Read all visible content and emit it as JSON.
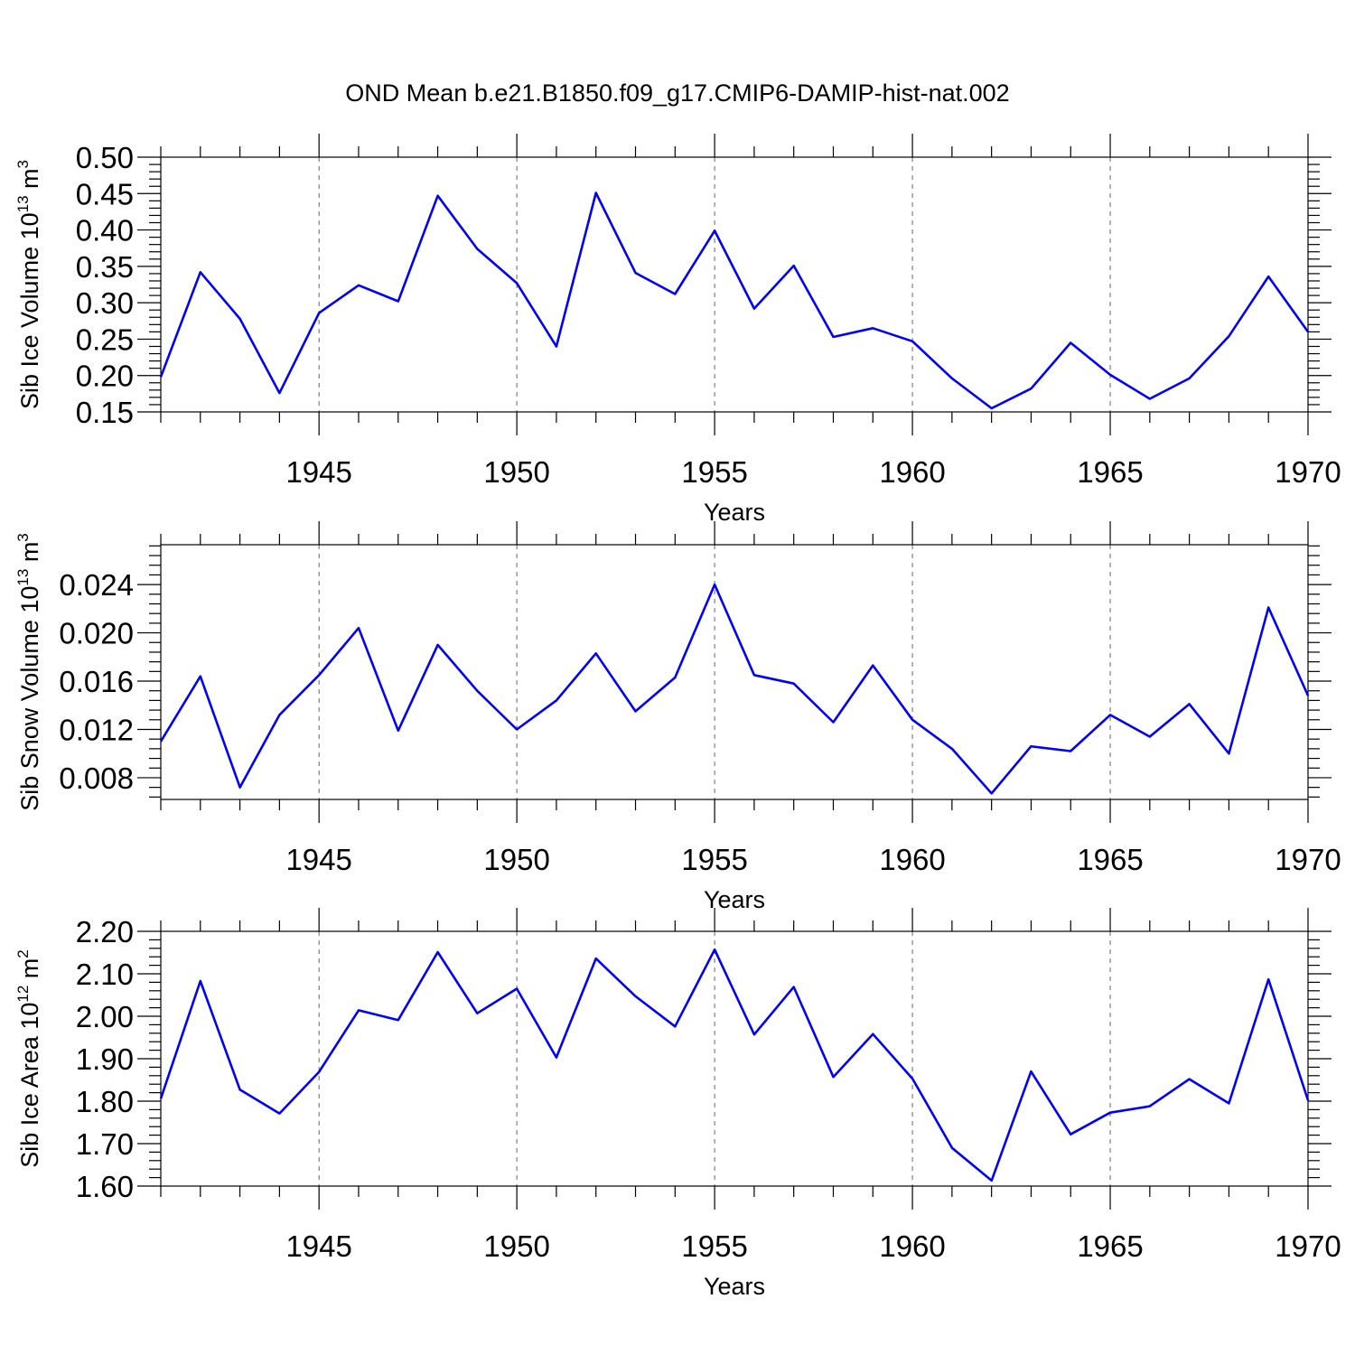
{
  "title": "OND Mean b.e21.B1850.f09_g17.CMIP6-DAMIP-hist-nat.002",
  "chart_data": [
    {
      "type": "line",
      "ylabel_main": "Sib Ice Volume 10",
      "ylabel_sup": "13",
      "ylabel_tail": " m",
      "ylabel_sup2": "3",
      "xlabel": "Years",
      "xlim": [
        1941,
        1970
      ],
      "ylim": [
        0.15,
        0.5
      ],
      "yticks": [
        "0.15",
        "0.20",
        "0.25",
        "0.30",
        "0.35",
        "0.40",
        "0.45",
        "0.50"
      ],
      "ytick_values": [
        0.15,
        0.2,
        0.25,
        0.3,
        0.35,
        0.4,
        0.45,
        0.5
      ],
      "xticks": [
        "1945",
        "1950",
        "1955",
        "1960",
        "1965",
        "1970"
      ],
      "xtick_values": [
        1945,
        1950,
        1955,
        1960,
        1965,
        1970
      ],
      "grid": "vertical dashed at major x ticks",
      "color": "#0000ff",
      "x": [
        1941,
        1942,
        1943,
        1944,
        1945,
        1946,
        1947,
        1948,
        1949,
        1950,
        1951,
        1952,
        1953,
        1954,
        1955,
        1956,
        1957,
        1958,
        1959,
        1960,
        1961,
        1962,
        1963,
        1964,
        1965,
        1966,
        1967,
        1968,
        1969,
        1970
      ],
      "values": [
        0.198,
        0.342,
        0.278,
        0.176,
        0.286,
        0.324,
        0.302,
        0.447,
        0.374,
        0.327,
        0.24,
        0.451,
        0.341,
        0.312,
        0.399,
        0.292,
        0.351,
        0.253,
        0.265,
        0.247,
        0.196,
        0.155,
        0.182,
        0.245,
        0.201,
        0.168,
        0.196,
        0.254,
        0.336,
        0.26
      ]
    },
    {
      "type": "line",
      "ylabel_main": "Sib Snow Volume 10",
      "ylabel_sup": "13",
      "ylabel_tail": " m",
      "ylabel_sup2": "3",
      "xlabel": "Years",
      "xlim": [
        1941,
        1970
      ],
      "ylim": [
        0.0062,
        0.0273
      ],
      "yticks": [
        "0.008",
        "0.012",
        "0.016",
        "0.020",
        "0.024"
      ],
      "ytick_values": [
        0.008,
        0.012,
        0.016,
        0.02,
        0.024
      ],
      "xticks": [
        "1945",
        "1950",
        "1955",
        "1960",
        "1965",
        "1970"
      ],
      "xtick_values": [
        1945,
        1950,
        1955,
        1960,
        1965,
        1970
      ],
      "grid": "vertical dashed at major x ticks",
      "color": "#0000ff",
      "x": [
        1941,
        1942,
        1943,
        1944,
        1945,
        1946,
        1947,
        1948,
        1949,
        1950,
        1951,
        1952,
        1953,
        1954,
        1955,
        1956,
        1957,
        1958,
        1959,
        1960,
        1961,
        1962,
        1963,
        1964,
        1965,
        1966,
        1967,
        1968,
        1969,
        1970
      ],
      "values": [
        0.011,
        0.0164,
        0.0072,
        0.0132,
        0.0165,
        0.0204,
        0.0119,
        0.019,
        0.0152,
        0.012,
        0.0144,
        0.0183,
        0.0135,
        0.0163,
        0.024,
        0.0165,
        0.0158,
        0.0126,
        0.0173,
        0.0128,
        0.0104,
        0.0067,
        0.0106,
        0.0102,
        0.0132,
        0.0114,
        0.0141,
        0.01,
        0.0221,
        0.0148
      ]
    },
    {
      "type": "line",
      "ylabel_main": "Sib Ice Area 10",
      "ylabel_sup": "12",
      "ylabel_tail": " m",
      "ylabel_sup2": "2",
      "xlabel": "Years",
      "xlim": [
        1941,
        1970
      ],
      "ylim": [
        1.6,
        2.2
      ],
      "yticks": [
        "1.60",
        "1.70",
        "1.80",
        "1.90",
        "2.00",
        "2.10",
        "2.20"
      ],
      "ytick_values": [
        1.6,
        1.7,
        1.8,
        1.9,
        2.0,
        2.1,
        2.2
      ],
      "xticks": [
        "1945",
        "1950",
        "1955",
        "1960",
        "1965",
        "1970"
      ],
      "xtick_values": [
        1945,
        1950,
        1955,
        1960,
        1965,
        1970
      ],
      "grid": "vertical dashed at major x ticks",
      "color": "#0000ff",
      "x": [
        1941,
        1942,
        1943,
        1944,
        1945,
        1946,
        1947,
        1948,
        1949,
        1950,
        1951,
        1952,
        1953,
        1954,
        1955,
        1956,
        1957,
        1958,
        1959,
        1960,
        1961,
        1962,
        1963,
        1964,
        1965,
        1966,
        1967,
        1968,
        1969,
        1970
      ],
      "values": [
        1.806,
        2.083,
        1.827,
        1.771,
        1.869,
        2.014,
        1.991,
        2.151,
        2.007,
        2.065,
        1.903,
        2.136,
        2.047,
        1.976,
        2.157,
        1.957,
        2.069,
        1.857,
        1.958,
        1.853,
        1.69,
        1.613,
        1.87,
        1.722,
        1.773,
        1.788,
        1.852,
        1.795,
        2.087,
        1.802
      ]
    }
  ]
}
